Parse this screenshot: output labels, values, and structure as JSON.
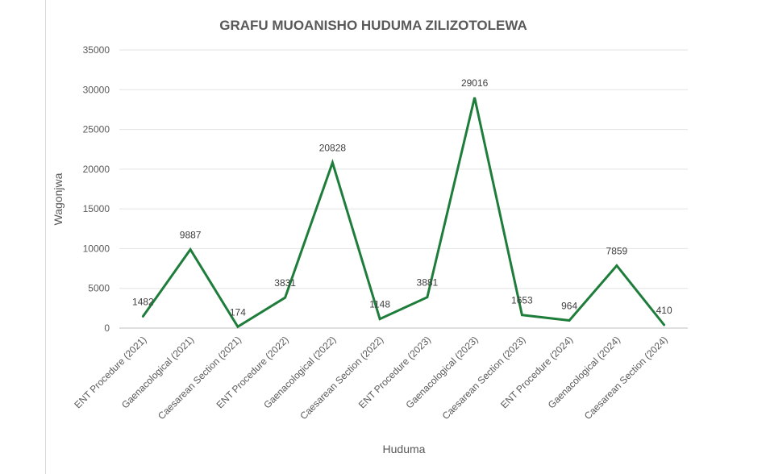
{
  "chart_data": {
    "type": "line",
    "title": "GRAFU MUOANISHO HUDUMA ZILIZOTOLEWA",
    "xlabel": "Huduma",
    "ylabel": "Wagonjwa",
    "ylim": [
      0,
      35000
    ],
    "yticks": [
      "0",
      "5000",
      "10000",
      "15000",
      "20000",
      "25000",
      "30000",
      "35000"
    ],
    "grid": true,
    "legend": "none",
    "line_color": "#1e7d3a",
    "categories": [
      "ENT Procedure (2021)",
      "Gaenacological (2021)",
      "Caesarean Section (2021)",
      "ENT Procedure (2022)",
      "Gaenacological (2022)",
      "Caesarean Section (2022)",
      "ENT Procedure (2023)",
      "Gaenacological (2023)",
      "Caesarean Section (2023)",
      "ENT Procedure (2024)",
      "Gaenacological (2024)",
      "Caesarean Section (2024)"
    ],
    "values": [
      1482,
      9887,
      174,
      3831,
      20828,
      1148,
      3881,
      29016,
      1653,
      964,
      7859,
      410
    ],
    "data_labels": [
      "1482",
      "9887",
      "174",
      "3831",
      "20828",
      "1148",
      "3881",
      "29016",
      "1653",
      "964",
      "7859",
      "410"
    ]
  }
}
